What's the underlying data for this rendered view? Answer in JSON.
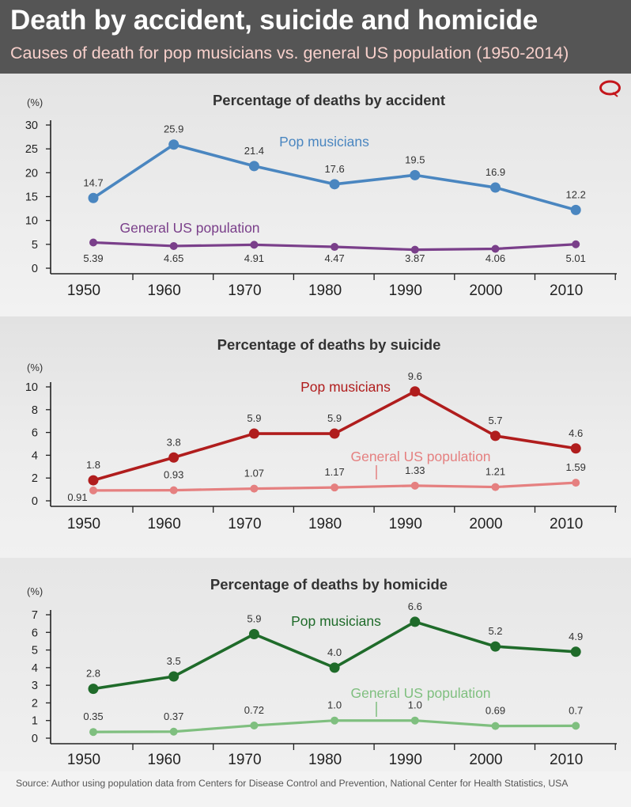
{
  "header": {
    "title": "Death by accident, suicide and homicide",
    "subtitle": "Causes of death for pop musicians vs. general US population (1950-2014)"
  },
  "footer": {
    "source": "Source: Author using population data from Centers for Disease Control and Prevention, National Center for Health Statistics, USA"
  },
  "colors": {
    "header_bg": "#555555",
    "subtitle": "#f7d0cb",
    "logo": "#c4161c"
  },
  "logo_icon": "guardian-quote-logo-icon",
  "chart_data": [
    {
      "type": "line",
      "title": "Percentage of deaths by accident",
      "ylabel": "(%)",
      "x": [
        1950,
        1960,
        1970,
        1980,
        1990,
        2000,
        2010
      ],
      "ylim": [
        0,
        30
      ],
      "yticks": [
        0,
        5,
        10,
        15,
        20,
        25,
        30
      ],
      "series": [
        {
          "name": "Pop musicians",
          "color": "#4a86c0",
          "values": [
            14.7,
            25.9,
            21.4,
            17.6,
            19.5,
            16.9,
            12.2
          ],
          "labels": [
            "14.7",
            "25.9",
            "21.4",
            "17.6",
            "19.5",
            "16.9",
            "12.2"
          ]
        },
        {
          "name": "General US population",
          "color": "#7a3f8a",
          "values": [
            5.39,
            4.65,
            4.91,
            4.47,
            3.87,
            4.06,
            5.01
          ],
          "labels": [
            "5.39",
            "4.65",
            "4.91",
            "4.47",
            "3.87",
            "4.06",
            "5.01"
          ]
        }
      ]
    },
    {
      "type": "line",
      "title": "Percentage of deaths by suicide",
      "ylabel": "(%)",
      "x": [
        1950,
        1960,
        1970,
        1980,
        1990,
        2000,
        2010
      ],
      "ylim": [
        0,
        10
      ],
      "yticks": [
        0,
        2,
        4,
        6,
        8,
        10
      ],
      "series": [
        {
          "name": "Pop musicians",
          "color": "#b01d1d",
          "values": [
            1.8,
            3.8,
            5.9,
            5.9,
            9.6,
            5.7,
            4.6
          ],
          "labels": [
            "1.8",
            "3.8",
            "5.9",
            "5.9",
            "9.6",
            "5.7",
            "4.6"
          ]
        },
        {
          "name": "General US population",
          "color": "#e58080",
          "values": [
            0.91,
            0.93,
            1.07,
            1.17,
            1.33,
            1.21,
            1.59
          ],
          "labels": [
            "0.91",
            "0.93",
            "1.07",
            "1.17",
            "1.33",
            "1.21",
            "1.59"
          ]
        }
      ]
    },
    {
      "type": "line",
      "title": "Percentage of deaths by homicide",
      "ylabel": "(%)",
      "x": [
        1950,
        1960,
        1970,
        1980,
        1990,
        2000,
        2010
      ],
      "ylim": [
        0,
        7
      ],
      "yticks": [
        0,
        1,
        2,
        3,
        4,
        5,
        6,
        7
      ],
      "series": [
        {
          "name": "Pop musicians",
          "color": "#1f6b2a",
          "values": [
            2.8,
            3.5,
            5.9,
            4.0,
            6.6,
            5.2,
            4.9
          ],
          "labels": [
            "2.8",
            "3.5",
            "5.9",
            "4.0",
            "6.6",
            "5.2",
            "4.9"
          ]
        },
        {
          "name": "General US population",
          "color": "#7fbf7f",
          "values": [
            0.35,
            0.37,
            0.72,
            1.0,
            1.0,
            0.69,
            0.7
          ],
          "labels": [
            "0.35",
            "0.37",
            "0.72",
            "1.0",
            "1.0",
            "0.69",
            "0.7"
          ]
        }
      ]
    }
  ]
}
